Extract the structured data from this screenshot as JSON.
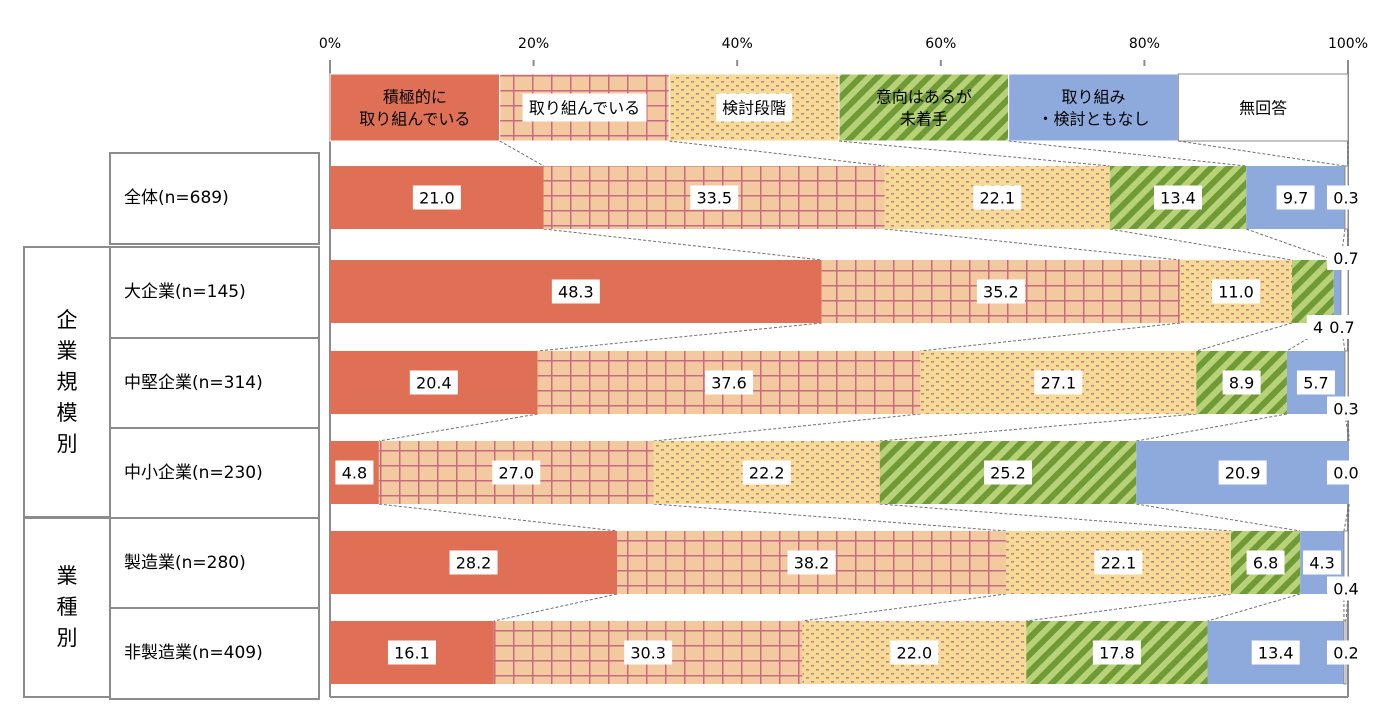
{
  "chart_data": {
    "type": "bar",
    "orientation": "horizontal",
    "stacked": "100%",
    "x_ticks": [
      "0%",
      "20%",
      "40%",
      "60%",
      "80%",
      "100%"
    ],
    "xlim": [
      0,
      100
    ],
    "legend_position": "top",
    "legend": [
      {
        "name": "積極的に\n取り組んでいる",
        "color": "#e07055",
        "pattern": "solid"
      },
      {
        "name": "取り組んでいる",
        "color": "#f3c9a0",
        "pattern": "grid"
      },
      {
        "name": "検討段階",
        "color": "#f4dc94",
        "pattern": "dots"
      },
      {
        "name": "意向はあるが\n未着手",
        "color": "#8fb04a",
        "pattern": "stripes"
      },
      {
        "name": "取り組み\n・検討ともなし",
        "color": "#8eaadc",
        "pattern": "solid"
      },
      {
        "name": "無回答",
        "color": "#ffffff",
        "pattern": "solid"
      }
    ],
    "groups": [
      {
        "label": "",
        "rows": [
          "全体(n=689)"
        ]
      },
      {
        "label": "企\n業\n規\n模\n別",
        "rows": [
          "大企業(n=145)",
          "中堅企業(n=314)",
          "中小企業(n=230)"
        ]
      },
      {
        "label": "業\n種\n別",
        "rows": [
          "製造業(n=280)",
          "非製造業(n=409)"
        ]
      }
    ],
    "categories": [
      "全体(n=689)",
      "大企業(n=145)",
      "中堅企業(n=314)",
      "中小企業(n=230)",
      "製造業(n=280)",
      "非製造業(n=409)"
    ],
    "series": [
      {
        "name": "積極的に\n取り組んでいる",
        "values": [
          21.0,
          48.3,
          20.4,
          4.8,
          28.2,
          16.1
        ]
      },
      {
        "name": "取り組んでいる",
        "values": [
          33.5,
          35.2,
          37.6,
          27.0,
          38.2,
          30.3
        ]
      },
      {
        "name": "検討段階",
        "values": [
          22.1,
          11.0,
          27.1,
          22.2,
          22.1,
          22.0
        ]
      },
      {
        "name": "意向はあるが\n未着手",
        "values": [
          13.4,
          4.1,
          8.9,
          25.2,
          6.8,
          17.8
        ]
      },
      {
        "name": "取り組み\n・検討ともなし",
        "values": [
          9.7,
          0.7,
          5.7,
          20.9,
          4.3,
          13.4
        ]
      },
      {
        "name": "無回答",
        "values": [
          0.3,
          0.7,
          0.3,
          0.0,
          0.4,
          0.2
        ]
      }
    ]
  }
}
